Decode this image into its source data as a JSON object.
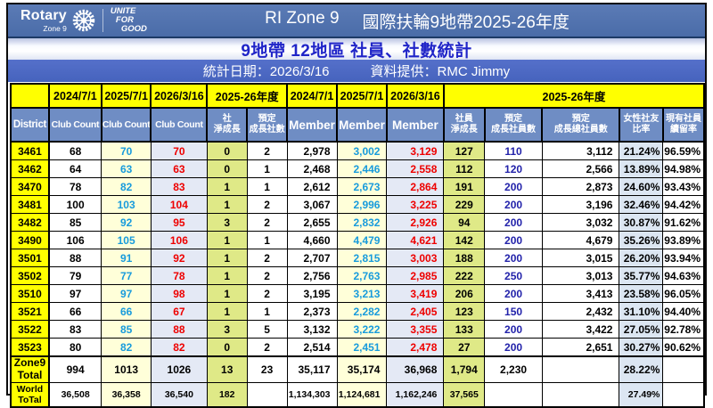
{
  "brand": {
    "name": "Rotary",
    "zone": "Zone 9",
    "tagline_lines": [
      "UNITE",
      "FOR",
      "GOOD"
    ]
  },
  "header": {
    "title_left": "RI Zone 9",
    "title_right": "國際扶輪9地帶2025-26年度"
  },
  "subtitle": "9地帶 12地區 社員、社數統計",
  "meta": {
    "date": "統計日期：2026/3/16",
    "provider": "資料提供：RMC Jimmy"
  },
  "table": {
    "header_row1": [
      {
        "label": "",
        "span": 1
      },
      {
        "label": "2024/7/1",
        "span": 1
      },
      {
        "label": "2025/7/1",
        "span": 1
      },
      {
        "label": "2026/3/16",
        "span": 1
      },
      {
        "label": "2025-26年度",
        "span": 2
      },
      {
        "label": "2024/7/1",
        "span": 1
      },
      {
        "label": "2025/7/1",
        "span": 1
      },
      {
        "label": "2026/3/16",
        "span": 1
      },
      {
        "label": "2025-26年度",
        "span": 5
      }
    ],
    "header_row2": [
      [
        "District"
      ],
      [
        "Club Count"
      ],
      [
        "Club Count"
      ],
      [
        "Club Count"
      ],
      [
        "社",
        "淨成長"
      ],
      [
        "預定",
        "成長社數"
      ],
      [
        "Member"
      ],
      [
        "Member"
      ],
      [
        "Member"
      ],
      [
        "社員",
        "淨成長"
      ],
      [
        "預定",
        "成長社員數"
      ],
      [
        "預定",
        "成長總社員數"
      ],
      [
        "女性社友",
        "比率"
      ],
      [
        "現有社員",
        "續留率"
      ]
    ],
    "rows": [
      {
        "district": "3461",
        "values": [
          "68",
          "70",
          "70",
          "0",
          "2",
          "2,978",
          "3,002",
          "3,129",
          "127",
          "110",
          "3,112",
          "21.24%",
          "96.59%"
        ]
      },
      {
        "district": "3462",
        "values": [
          "64",
          "63",
          "63",
          "0",
          "1",
          "2,468",
          "2,446",
          "2,558",
          "112",
          "120",
          "2,566",
          "13.89%",
          "94.98%"
        ]
      },
      {
        "district": "3470",
        "values": [
          "78",
          "82",
          "83",
          "1",
          "1",
          "2,612",
          "2,673",
          "2,864",
          "191",
          "200",
          "2,873",
          "24.60%",
          "93.43%"
        ]
      },
      {
        "district": "3481",
        "values": [
          "100",
          "103",
          "104",
          "1",
          "2",
          "3,067",
          "2,996",
          "3,225",
          "229",
          "200",
          "3,196",
          "32.46%",
          "94.42%"
        ]
      },
      {
        "district": "3482",
        "values": [
          "85",
          "92",
          "95",
          "3",
          "2",
          "2,655",
          "2,832",
          "2,926",
          "94",
          "200",
          "3,032",
          "30.87%",
          "91.62%"
        ]
      },
      {
        "district": "3490",
        "values": [
          "106",
          "105",
          "106",
          "1",
          "1",
          "4,660",
          "4,479",
          "4,621",
          "142",
          "200",
          "4,679",
          "35.26%",
          "93.89%"
        ]
      },
      {
        "district": "3501",
        "values": [
          "88",
          "91",
          "92",
          "1",
          "2",
          "2,707",
          "2,815",
          "3,003",
          "188",
          "200",
          "3,015",
          "26.20%",
          "93.94%"
        ]
      },
      {
        "district": "3502",
        "values": [
          "79",
          "77",
          "78",
          "1",
          "2",
          "2,756",
          "2,763",
          "2,985",
          "222",
          "250",
          "3,013",
          "35.77%",
          "94.63%"
        ]
      },
      {
        "district": "3510",
        "values": [
          "97",
          "97",
          "98",
          "1",
          "2",
          "3,195",
          "3,213",
          "3,419",
          "206",
          "200",
          "3,413",
          "23.58%",
          "96.05%"
        ]
      },
      {
        "district": "3521",
        "values": [
          "66",
          "66",
          "67",
          "1",
          "1",
          "2,373",
          "2,282",
          "2,405",
          "123",
          "150",
          "2,432",
          "31.10%",
          "94.40%"
        ]
      },
      {
        "district": "3522",
        "values": [
          "83",
          "85",
          "88",
          "3",
          "5",
          "3,132",
          "3,222",
          "3,355",
          "133",
          "200",
          "3,422",
          "27.05%",
          "92.78%"
        ]
      },
      {
        "district": "3523",
        "values": [
          "80",
          "82",
          "82",
          "0",
          "2",
          "2,514",
          "2,451",
          "2,478",
          "27",
          "200",
          "2,651",
          "30.27%",
          "90.62%"
        ]
      }
    ],
    "totals": [
      {
        "label_lines": [
          "Zone9",
          "Total"
        ],
        "values": [
          "994",
          "1013",
          "1026",
          "13",
          "23",
          "35,117",
          "35,174",
          "36,968",
          "1,794",
          "2,230",
          "",
          "28.22%",
          ""
        ]
      },
      {
        "label_lines": [
          "World",
          "ToTal"
        ],
        "values": [
          "36,508",
          "36,358",
          "36,540",
          "182",
          "",
          "1,134,303",
          "1,124,681",
          "1,162,246",
          "37,565",
          "",
          "",
          "27.49%",
          ""
        ]
      }
    ]
  },
  "colors": {
    "title_bar": "#4d70ae",
    "date_bar": "#4a67c2",
    "header_blue": "#6f8dc4",
    "header_yellow": "#ffff00",
    "growth_green": "#dfe987",
    "col_light_yellow": "#ffffd9",
    "col_lavender": "#e4e9f5",
    "ratio_light_blue": "#dce6f2",
    "text_blue": "#189bdc",
    "text_red": "#ee0000",
    "text_navy": "#2222aa",
    "subtitle_blue": "#2025c8"
  }
}
